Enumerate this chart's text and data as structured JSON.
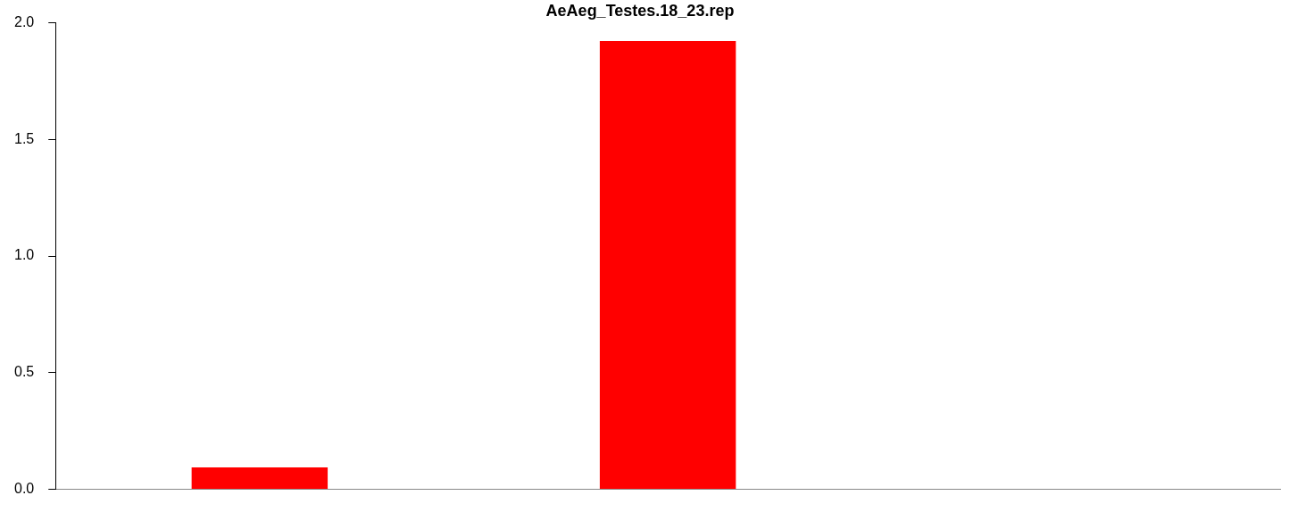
{
  "chart_data": {
    "type": "bar",
    "title": "AeAeg_Testes.18_23.rep",
    "categories": [
      null,
      null,
      null
    ],
    "values": [
      0.093,
      1.922,
      0
    ],
    "color": "#ff0000",
    "ylim": [
      0,
      2.0
    ],
    "yticks": [
      {
        "value": 0,
        "label": "0.0"
      },
      {
        "value": 0.5,
        "label": "0.5"
      },
      {
        "value": 1,
        "label": "1.0"
      },
      {
        "value": 1.5,
        "label": "1.5"
      },
      {
        "value": 2,
        "label": "2.0"
      }
    ],
    "grid": false
  }
}
